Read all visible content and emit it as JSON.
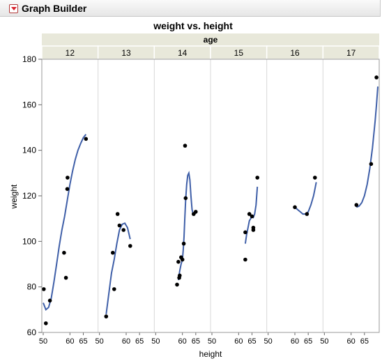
{
  "window": {
    "title": "Graph Builder",
    "menu_icon": "red-triangle-menu-icon"
  },
  "chart_data": {
    "type": "scatter",
    "title": "weight vs. height",
    "group_label": "age",
    "xlabel": "height",
    "ylabel": "weight",
    "xlim": [
      50,
      70
    ],
    "ylim": [
      60,
      180
    ],
    "x_ticks": [
      "50",
      "60",
      "65"
    ],
    "y_ticks": [
      60,
      80,
      100,
      120,
      140,
      160,
      180
    ],
    "grid": false,
    "smoother": true,
    "colors": {
      "points": "#000000",
      "smoother": "#3f5fa8",
      "header": "#e8e8da",
      "divider": "#d8d8d8"
    },
    "panels": [
      {
        "age": "12",
        "points": [
          [
            50.2,
            79
          ],
          [
            51,
            64
          ],
          [
            52.5,
            74
          ],
          [
            57.8,
            95
          ],
          [
            58.5,
            84
          ],
          [
            59,
            123
          ],
          [
            59.1,
            128
          ],
          [
            66,
            145
          ]
        ],
        "smoother": [
          [
            50,
            73
          ],
          [
            51,
            70
          ],
          [
            52,
            71
          ],
          [
            53,
            75
          ],
          [
            54,
            82
          ],
          [
            55,
            90
          ],
          [
            56,
            98
          ],
          [
            57,
            105
          ],
          [
            58,
            111
          ],
          [
            59,
            118
          ],
          [
            60,
            125
          ],
          [
            61,
            131
          ],
          [
            62,
            136
          ],
          [
            63,
            140
          ],
          [
            64,
            143
          ],
          [
            65,
            145.5
          ],
          [
            66,
            147
          ]
        ]
      },
      {
        "age": "13",
        "points": [
          [
            52.5,
            67
          ],
          [
            55,
            95
          ],
          [
            55.5,
            79
          ],
          [
            56.8,
            112
          ],
          [
            57.5,
            107
          ],
          [
            59,
            105
          ],
          [
            61.5,
            98
          ]
        ],
        "smoother": [
          [
            52.5,
            68
          ],
          [
            53.5,
            77
          ],
          [
            54.5,
            86
          ],
          [
            55.5,
            92
          ],
          [
            56.5,
            99
          ],
          [
            57.5,
            105
          ],
          [
            58.5,
            107.5
          ],
          [
            59.5,
            108
          ],
          [
            60.5,
            106
          ],
          [
            61.5,
            101
          ]
        ]
      },
      {
        "age": "14",
        "points": [
          [
            58,
            81
          ],
          [
            58.5,
            91
          ],
          [
            58.8,
            84
          ],
          [
            59,
            85
          ],
          [
            59.5,
            93
          ],
          [
            60,
            92
          ],
          [
            60.5,
            99
          ],
          [
            61,
            142
          ],
          [
            61.2,
            119
          ],
          [
            64.2,
            112
          ],
          [
            65,
            113
          ]
        ],
        "smoother": [
          [
            58.5,
            83
          ],
          [
            59,
            87
          ],
          [
            59.5,
            90
          ],
          [
            60,
            92
          ],
          [
            60.3,
            96
          ],
          [
            60.6,
            102
          ],
          [
            60.9,
            110
          ],
          [
            61.2,
            118
          ],
          [
            61.6,
            125
          ],
          [
            62,
            129
          ],
          [
            62.4,
            130
          ],
          [
            62.8,
            127
          ],
          [
            63.2,
            120
          ],
          [
            63.6,
            114
          ],
          [
            64,
            112
          ],
          [
            64.5,
            112.5
          ],
          [
            65,
            112
          ]
        ]
      },
      {
        "age": "15",
        "points": [
          [
            62.5,
            92
          ],
          [
            62.5,
            104
          ],
          [
            64,
            112
          ],
          [
            65,
            111
          ],
          [
            65.5,
            105
          ],
          [
            65.5,
            106
          ],
          [
            67,
            128
          ]
        ],
        "smoother": [
          [
            62.5,
            99
          ],
          [
            63,
            103
          ],
          [
            63.5,
            106
          ],
          [
            64,
            109
          ],
          [
            64.5,
            110
          ],
          [
            65,
            111
          ],
          [
            65.5,
            110.5
          ],
          [
            66,
            112
          ],
          [
            66.5,
            116
          ],
          [
            67,
            124
          ]
        ]
      },
      {
        "age": "16",
        "points": [
          [
            60,
            115
          ],
          [
            64.5,
            112
          ],
          [
            67.5,
            128
          ]
        ],
        "smoother": [
          [
            60,
            115
          ],
          [
            61,
            114
          ],
          [
            62,
            113
          ],
          [
            63,
            112
          ],
          [
            64,
            112
          ],
          [
            65,
            113
          ],
          [
            66,
            116
          ],
          [
            67,
            120
          ],
          [
            67.5,
            123
          ],
          [
            68,
            126
          ]
        ]
      },
      {
        "age": "17",
        "points": [
          [
            62,
            116
          ],
          [
            67.5,
            134
          ],
          [
            69.5,
            172
          ]
        ],
        "smoother": [
          [
            62,
            115
          ],
          [
            63,
            115.5
          ],
          [
            64,
            117
          ],
          [
            65,
            120
          ],
          [
            66,
            125
          ],
          [
            67,
            132
          ],
          [
            68,
            141
          ],
          [
            69,
            153
          ],
          [
            69.5,
            160
          ],
          [
            70,
            168
          ]
        ]
      }
    ]
  }
}
